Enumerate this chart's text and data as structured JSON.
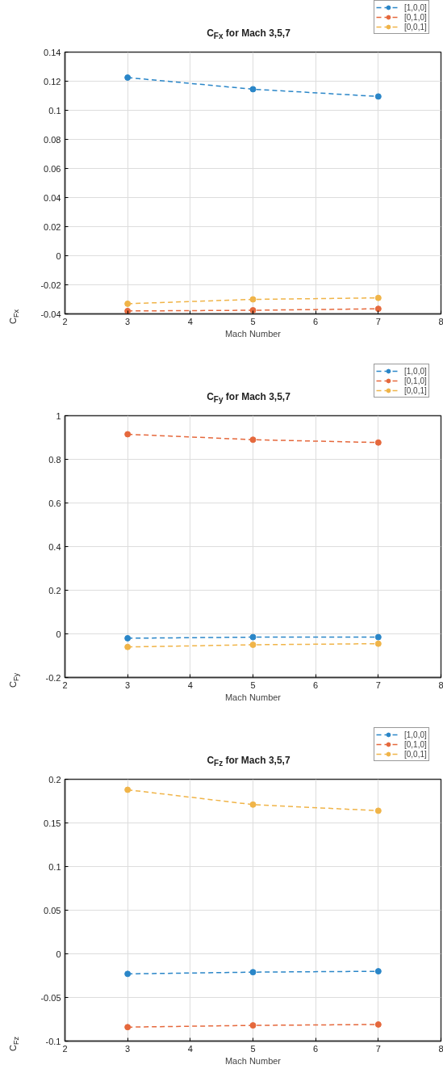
{
  "chart_data": [
    {
      "type": "line",
      "title": "C$_{Fx}$ for Mach 3,5,7",
      "xlabel": "Mach Number",
      "ylabel": "C$_{Fx}$",
      "x": [
        3,
        5,
        7
      ],
      "xlim": [
        2,
        8
      ],
      "xticks": [
        2,
        3,
        4,
        5,
        6,
        7,
        8
      ],
      "ylim": [
        -0.04,
        0.14
      ],
      "yticks": [
        -0.04,
        -0.02,
        0,
        0.02,
        0.04,
        0.06,
        0.08,
        0.1,
        0.12,
        0.14
      ],
      "grid": true,
      "legend": "top right",
      "marker": "circle",
      "line_style": "dashed",
      "series": [
        {
          "name": "[1,0,0]",
          "color": "#2a86c8",
          "values": [
            0.1225,
            0.1145,
            0.1095
          ]
        },
        {
          "name": "[0,1,0]",
          "color": "#e5683c",
          "values": [
            -0.038,
            -0.0375,
            -0.0365
          ]
        },
        {
          "name": "[0,0,1]",
          "color": "#f0b448",
          "values": [
            -0.033,
            -0.03,
            -0.029
          ]
        }
      ]
    },
    {
      "type": "line",
      "title": "C$_{Fy}$ for Mach 3,5,7",
      "xlabel": "Mach Number",
      "ylabel": "C$_{Fy}$",
      "x": [
        3,
        5,
        7
      ],
      "xlim": [
        2,
        8
      ],
      "xticks": [
        2,
        3,
        4,
        5,
        6,
        7,
        8
      ],
      "ylim": [
        -0.2,
        1
      ],
      "yticks": [
        -0.2,
        0,
        0.2,
        0.4,
        0.6,
        0.8,
        1
      ],
      "grid": true,
      "legend": "top right",
      "marker": "circle",
      "line_style": "dashed",
      "series": [
        {
          "name": "[1,0,0]",
          "color": "#2a86c8",
          "values": [
            -0.02,
            -0.015,
            -0.015
          ]
        },
        {
          "name": "[0,1,0]",
          "color": "#e5683c",
          "values": [
            0.915,
            0.89,
            0.877
          ]
        },
        {
          "name": "[0,0,1]",
          "color": "#f0b448",
          "values": [
            -0.06,
            -0.05,
            -0.045
          ]
        }
      ]
    },
    {
      "type": "line",
      "title": "C$_{Fz}$ for Mach 3,5,7",
      "xlabel": "Mach Number",
      "ylabel": "C$_{Fz}$",
      "x": [
        3,
        5,
        7
      ],
      "xlim": [
        2,
        8
      ],
      "xticks": [
        2,
        3,
        4,
        5,
        6,
        7,
        8
      ],
      "ylim": [
        -0.1,
        0.2
      ],
      "yticks": [
        -0.1,
        -0.05,
        0,
        0.05,
        0.1,
        0.15,
        0.2
      ],
      "grid": true,
      "legend": "top right",
      "marker": "circle",
      "line_style": "dashed",
      "series": [
        {
          "name": "[1,0,0]",
          "color": "#2a86c8",
          "values": [
            -0.023,
            -0.021,
            -0.02
          ]
        },
        {
          "name": "[0,1,0]",
          "color": "#e5683c",
          "values": [
            -0.084,
            -0.082,
            -0.081
          ]
        },
        {
          "name": "[0,0,1]",
          "color": "#f0b448",
          "values": [
            0.188,
            0.171,
            0.164
          ]
        }
      ]
    }
  ]
}
